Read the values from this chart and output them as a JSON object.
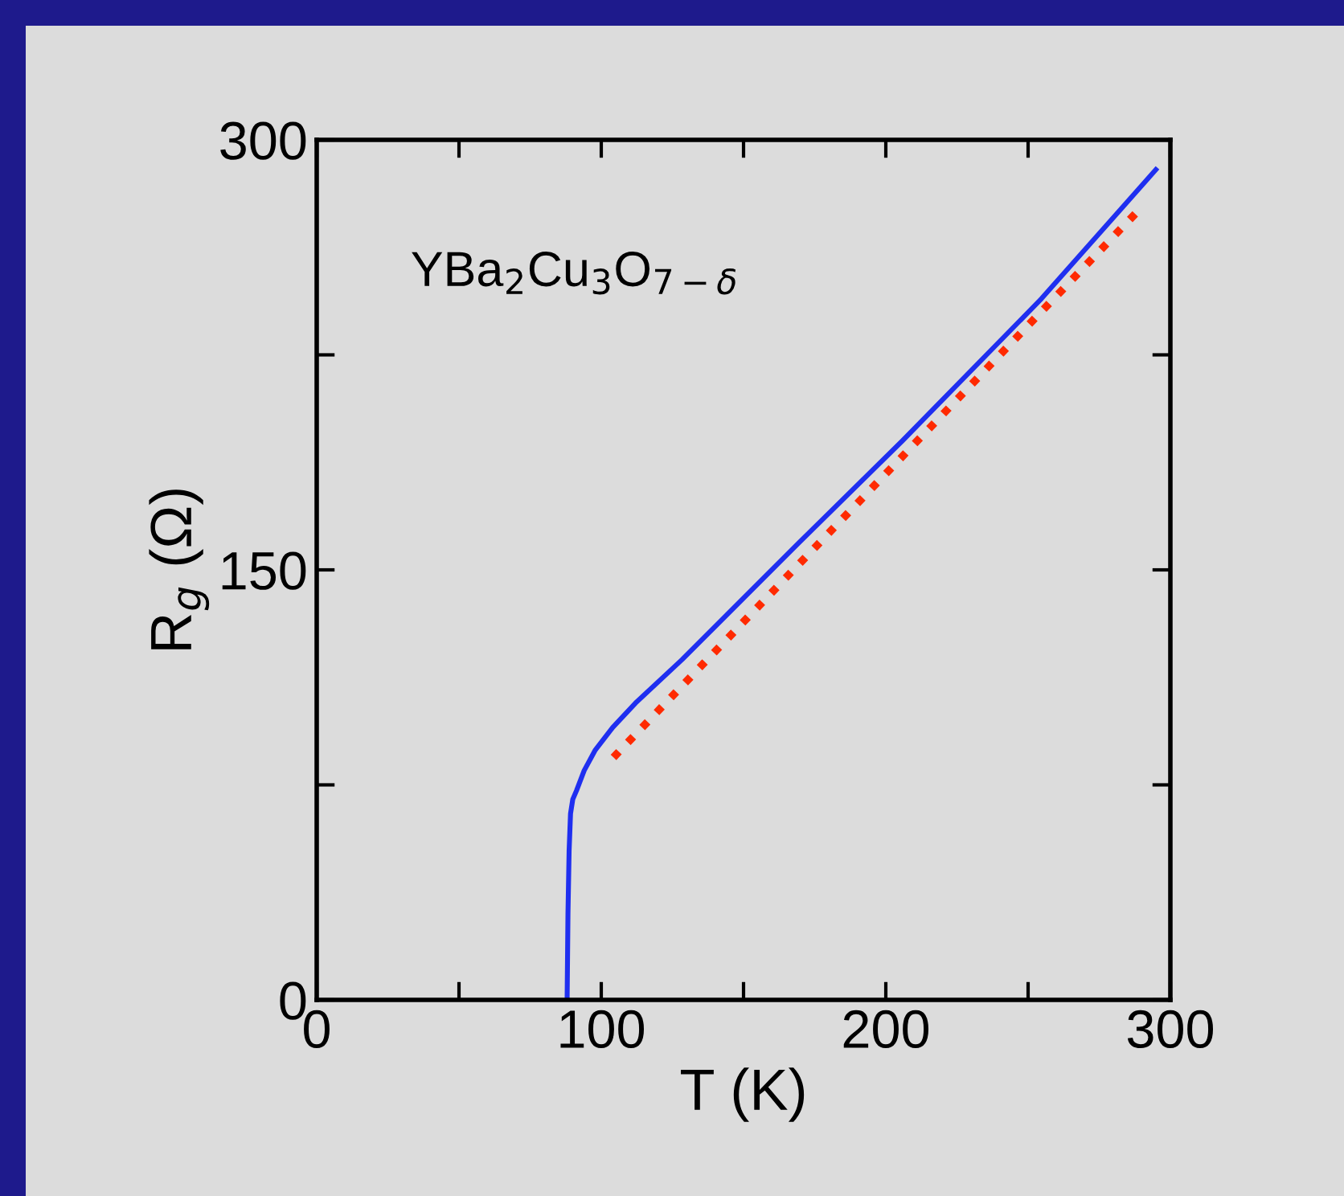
{
  "chart_data": {
    "type": "line",
    "xlabel": "T (K)",
    "ylabel": "R$_{g}$ (Ω)",
    "annotations": [
      "YBa$_{2}$Cu$_{3}$O$_{7−δ}$"
    ],
    "series": [
      {
        "color": "#1f2ff0",
        "line_style": "solid",
        "x": [
          88.0,
          88.3,
          88.7,
          89.2,
          90.0,
          91.3,
          94.0,
          97.8,
          104.0,
          112.0,
          128.4,
          169.0,
          205.8,
          254.7,
          294.9
        ],
        "values": [
          0,
          30,
          52,
          65,
          70,
          73,
          80,
          87,
          95,
          103.5,
          118.7,
          159,
          195,
          244.6,
          289.6
        ]
      },
      {
        "color": "#ff2a00",
        "line_style": "dotted",
        "x": [
          104.3,
          289.4
        ],
        "values": [
          84.6,
          276
        ]
      }
    ],
    "xlim": [
      0,
      300
    ],
    "ylim": [
      0,
      300
    ],
    "xticks": [
      0,
      {
        "value": 50,
        "label": null
      },
      100,
      {
        "value": 150,
        "label": null
      },
      200,
      {
        "value": 250,
        "label": null
      },
      300
    ],
    "yticks": [
      0,
      {
        "value": 75,
        "label": null
      },
      150,
      {
        "value": 225,
        "label": null
      },
      300
    ],
    "grid": false,
    "legend": false
  }
}
